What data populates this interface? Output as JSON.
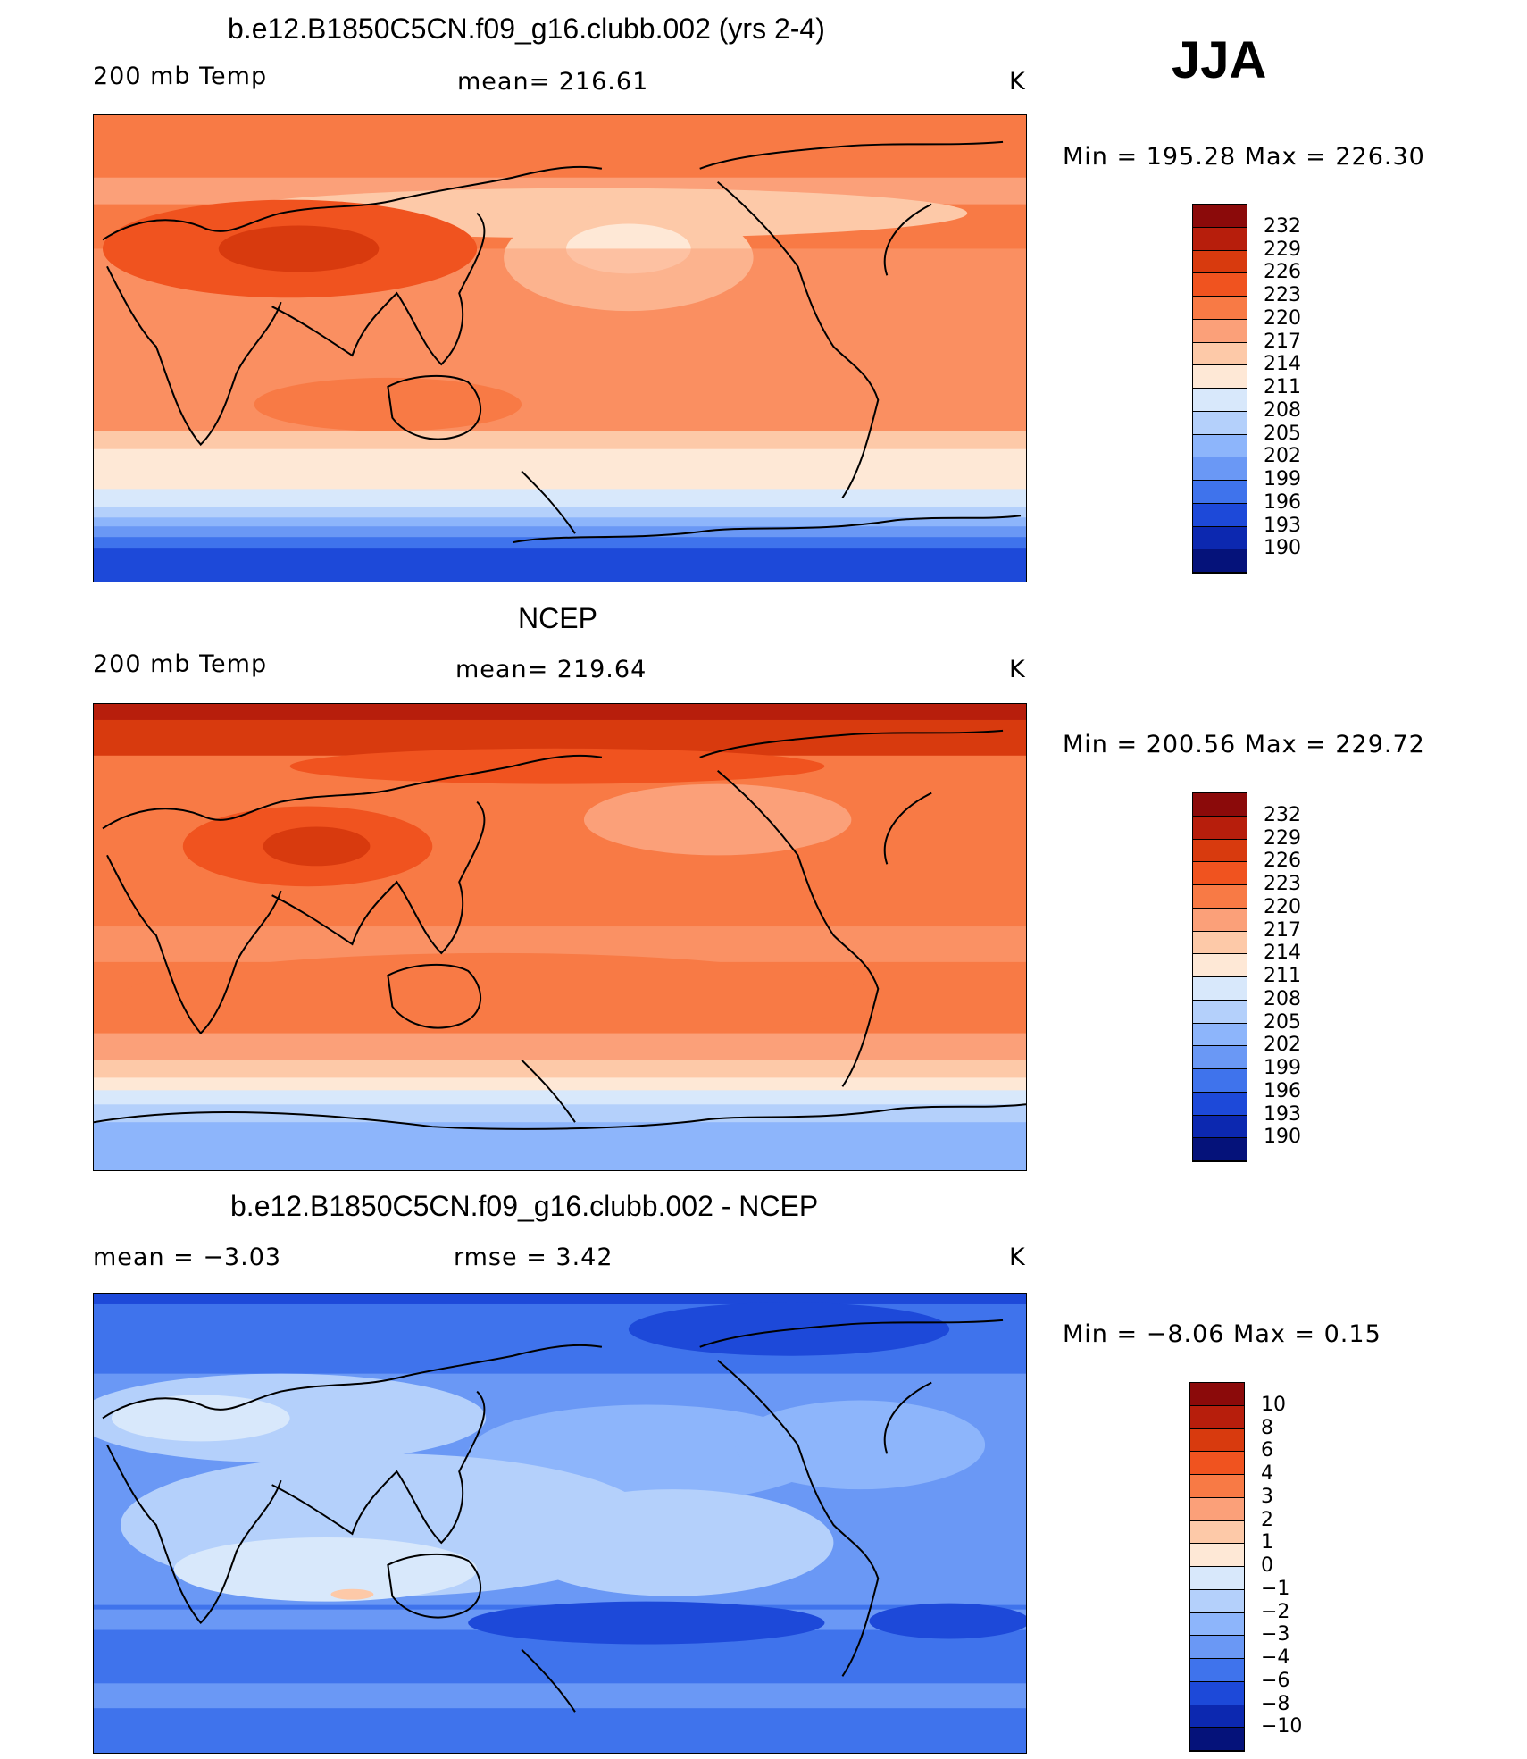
{
  "season": "JJA",
  "panels": [
    {
      "id": "model",
      "title": "b.e12.B1850C5CN.f09_g16.clubb.002 (yrs 2-4)",
      "left_label": "200 mb Temp",
      "center_label": "mean=  216.61",
      "units": "K",
      "minmax": "Min  =  195.28  Max  =  226.30",
      "colorbar_labels": [
        "232",
        "229",
        "226",
        "223",
        "220",
        "217",
        "214",
        "211",
        "208",
        "205",
        "202",
        "199",
        "196",
        "193",
        "190"
      ],
      "colorbar_colors": [
        "#8b0a0a",
        "#b71e0c",
        "#d83a0e",
        "#f0531f",
        "#f87a45",
        "#fba079",
        "#fdc9a8",
        "#fee8d6",
        "#d8e8fb",
        "#b4d0fb",
        "#8db5fb",
        "#6a98f5",
        "#3f73ec",
        "#1d49d9",
        "#0c28b0",
        "#05127a"
      ],
      "map_field": "model"
    },
    {
      "id": "obs",
      "title": "NCEP",
      "left_label": "200 mb Temp",
      "center_label": "mean=  219.64",
      "units": "K",
      "minmax": "Min  =  200.56  Max  =  229.72",
      "colorbar_labels": [
        "232",
        "229",
        "226",
        "223",
        "220",
        "217",
        "214",
        "211",
        "208",
        "205",
        "202",
        "199",
        "196",
        "193",
        "190"
      ],
      "colorbar_colors": [
        "#8b0a0a",
        "#b71e0c",
        "#d83a0e",
        "#f0531f",
        "#f87a45",
        "#fba079",
        "#fdc9a8",
        "#fee8d6",
        "#d8e8fb",
        "#b4d0fb",
        "#8db5fb",
        "#6a98f5",
        "#3f73ec",
        "#1d49d9",
        "#0c28b0",
        "#05127a"
      ],
      "map_field": "obs"
    },
    {
      "id": "diff",
      "title": "b.e12.B1850C5CN.f09_g16.clubb.002 - NCEP",
      "left_label": "mean  =    −3.03",
      "center_label": "rmse  =     3.42",
      "units": "K",
      "minmax": "Min  =    −8.06  Max  =      0.15",
      "colorbar_labels": [
        "10",
        "8",
        "6",
        "4",
        "3",
        "2",
        "1",
        "0",
        "−1",
        "−2",
        "−3",
        "−4",
        "−6",
        "−8",
        "−10"
      ],
      "colorbar_colors": [
        "#8b0a0a",
        "#b71e0c",
        "#d83a0e",
        "#f0531f",
        "#f87a45",
        "#fba079",
        "#fdc9a8",
        "#fee8d6",
        "#d8e8fb",
        "#b4d0fb",
        "#8db5fb",
        "#6a98f5",
        "#3f73ec",
        "#1d49d9",
        "#0c28b0",
        "#05127a"
      ],
      "map_field": "diff"
    }
  ]
}
